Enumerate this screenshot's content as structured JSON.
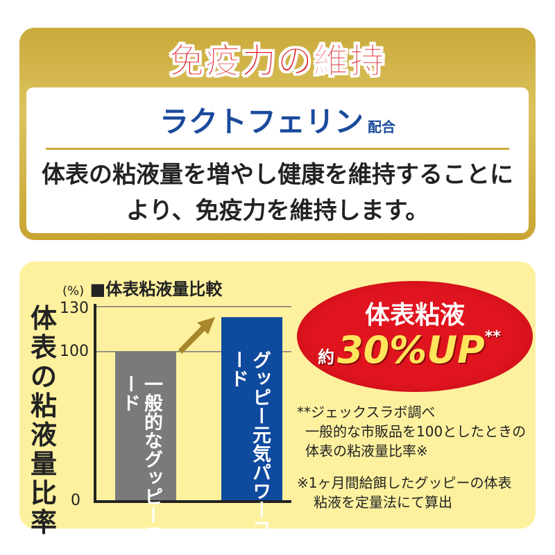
{
  "header": {
    "title": "免疫力の維持",
    "ingredient": "ラクトフェリン",
    "ingredient_suffix": "配合",
    "description_lines": [
      "体表の粘液量を増やし健康を維持することに",
      "より、免疫力を維持します。"
    ]
  },
  "colors": {
    "gold": "#c9a93a",
    "title_red": "#e0141e",
    "blue": "#1a4b9c",
    "gray_bar": "#7a7a7a",
    "blue_bar": "#0e4a9e",
    "panel_bg": "#fdf19f",
    "arrow": "#a8862a"
  },
  "chart_data": {
    "type": "bar",
    "title": "体表粘液量比較",
    "unit": "(%)",
    "ylabel": "体表の粘液量比率",
    "ylim": [
      0,
      130
    ],
    "yticks": [
      "0",
      "100",
      "130"
    ],
    "grid": true,
    "categories": [
      "一般的なグッピーフード",
      "グッピー元気パワーフード"
    ],
    "bar_labels": [
      [
        "一般的な",
        "グッピーフード"
      ],
      [
        "グッピー元気",
        "パワーフード"
      ]
    ],
    "values": [
      100,
      123
    ],
    "annotation_arrow": "increase"
  },
  "badge": {
    "line1": "体表粘液",
    "prefix": "約",
    "value": "30%UP",
    "mark": "**"
  },
  "notes": {
    "n1": "**ジェックスラボ調べ",
    "n1a": "一般的な市販品を100としたときの",
    "n1b": "体表の粘液量比率※",
    "n2": "※1ヶ月間給餌したグッピーの体表",
    "n2a": "粘液を定量法にて算出"
  }
}
